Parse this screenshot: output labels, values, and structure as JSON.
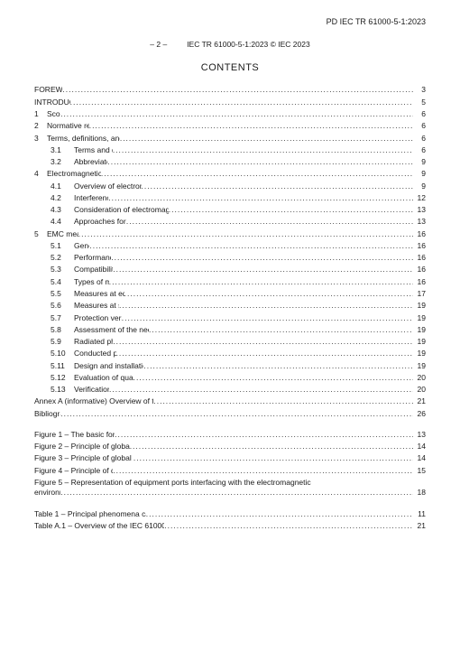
{
  "doc_id": "PD IEC TR 61000-5-1:2023",
  "header": {
    "page_marker": "– 2 –",
    "copyright": "IEC TR 61000-5-1:2023 © IEC 2023"
  },
  "title": "CONTENTS",
  "toc": [
    {
      "indent": 0,
      "num": "",
      "title": "FOREWORD",
      "page": "3"
    },
    {
      "indent": 0,
      "num": "",
      "title": "INTRODUCTION",
      "page": "5"
    },
    {
      "indent": 1,
      "num": "1",
      "title": "Scope",
      "page": "6"
    },
    {
      "indent": 1,
      "num": "2",
      "title": "Normative references",
      "page": "6"
    },
    {
      "indent": 1,
      "num": "3",
      "title": "Terms, definitions, and abbreviated terms",
      "page": "6"
    },
    {
      "indent": 2,
      "num": "3.1",
      "title": "Terms and definitions",
      "page": "6"
    },
    {
      "indent": 2,
      "num": "3.2",
      "title": "Abbreviated terms",
      "page": "9"
    },
    {
      "indent": 1,
      "num": "4",
      "title": "Electromagnetic phenomena",
      "page": "9"
    },
    {
      "indent": 2,
      "num": "4.1",
      "title": "Overview of electromagnetic phenomena",
      "page": "9"
    },
    {
      "indent": 2,
      "num": "4.2",
      "title": "Interference model",
      "page": "12"
    },
    {
      "indent": 2,
      "num": "4.3",
      "title": "Consideration of electromagnetic phenomena in EMC standards",
      "page": "13"
    },
    {
      "indent": 2,
      "num": "4.4",
      "title": "Approaches for ensuring EMC",
      "page": "13"
    },
    {
      "indent": 1,
      "num": "5",
      "title": "EMC measures",
      "page": "16"
    },
    {
      "indent": 2,
      "num": "5.1",
      "title": "General",
      "page": "16"
    },
    {
      "indent": 2,
      "num": "5.2",
      "title": "Performance reason",
      "page": "16"
    },
    {
      "indent": 2,
      "num": "5.3",
      "title": "Compatibility reasons",
      "page": "16"
    },
    {
      "indent": 2,
      "num": "5.4",
      "title": "Types of measures",
      "page": "16"
    },
    {
      "indent": 2,
      "num": "5.5",
      "title": "Measures at equipment level",
      "page": "17"
    },
    {
      "indent": 2,
      "num": "5.6",
      "title": "Measures at system level",
      "page": "19"
    },
    {
      "indent": 2,
      "num": "5.7",
      "title": "Protection versus immunity",
      "page": "19"
    },
    {
      "indent": 2,
      "num": "5.8",
      "title": "Assessment of the need for mitigation methods",
      "page": "19"
    },
    {
      "indent": 2,
      "num": "5.9",
      "title": "Radiated phenomena",
      "page": "19"
    },
    {
      "indent": 2,
      "num": "5.10",
      "title": "Conducted phenomena",
      "page": "19"
    },
    {
      "indent": 2,
      "num": "5.11",
      "title": "Design and installation of protective means",
      "page": "19"
    },
    {
      "indent": 2,
      "num": "5.12",
      "title": "Evaluation of quality of installations",
      "page": "20"
    },
    {
      "indent": 2,
      "num": "5.13",
      "title": "Verification of EMC",
      "page": "20"
    },
    {
      "indent": 0,
      "num": "",
      "title": "Annex A (informative)  Overview of the publications in the IEC 61000-5 series",
      "page": "21"
    },
    {
      "indent": 0,
      "num": "",
      "title": "Bibliography",
      "page": "26"
    }
  ],
  "figures": [
    {
      "title": "Figure 1 – The basic form of an EMI problem",
      "page": "13"
    },
    {
      "title": "Figure 2 – Principle of global protection by single barrier",
      "page": "14"
    },
    {
      "title": "Figure 3 – Principle of global protection by multiple barriers",
      "page": "14"
    },
    {
      "title": "Figure 4 – Principle of distributed protection",
      "page": "15"
    },
    {
      "title_line1": "Figure 5 – Representation of equipment ports interfacing with the electromagnetic",
      "title_line2": "environment",
      "page": "18",
      "wrap": true
    }
  ],
  "tables": [
    {
      "title": "Table 1 – Principal phenomena causing electromagnetic disturbances",
      "page": "11"
    },
    {
      "title": "Table A.1 – Overview of the IEC 61000-5 series (IEC TR 61000-5-2 to IEC 61000-5-10)",
      "page": "21"
    }
  ]
}
